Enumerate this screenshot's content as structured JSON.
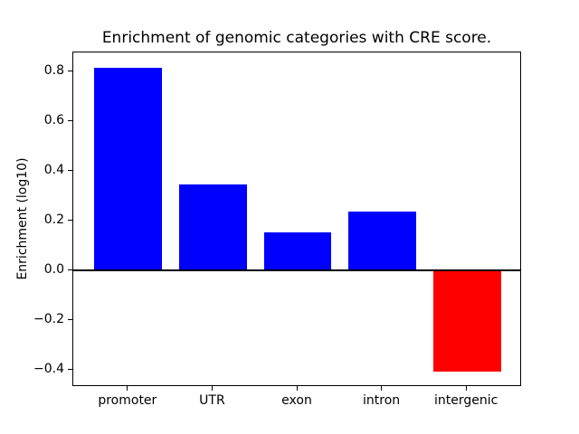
{
  "figure": {
    "background": "#ffffff"
  },
  "chart_data": {
    "type": "bar",
    "title": "Enrichment of genomic categories with CRE score.",
    "xlabel": "",
    "ylabel": "Enrichment (log10)",
    "categories": [
      "promoter",
      "UTR",
      "exon",
      "intron",
      "intergenic"
    ],
    "values": [
      0.815,
      0.348,
      0.153,
      0.236,
      -0.407
    ],
    "bar_colors": [
      "#0000ff",
      "#0000ff",
      "#0000ff",
      "#0000ff",
      "#ff0000"
    ],
    "positive_color": "#0000ff",
    "negative_color": "#ff0000",
    "bar_width": 0.8,
    "xlim": [
      -0.65,
      4.65
    ],
    "ylim": [
      -0.468,
      0.8775
    ],
    "yticks": [
      0.8,
      0.6,
      0.4,
      0.2,
      0.0,
      -0.2,
      -0.4
    ],
    "ytick_labels": [
      "0.8",
      "0.6",
      "0.4",
      "0.2",
      "0.0",
      "−0.2",
      "−0.4"
    ],
    "grid": false,
    "legend": false,
    "zero_line": true,
    "frame_color": "#000000",
    "text_color": "#000000"
  }
}
